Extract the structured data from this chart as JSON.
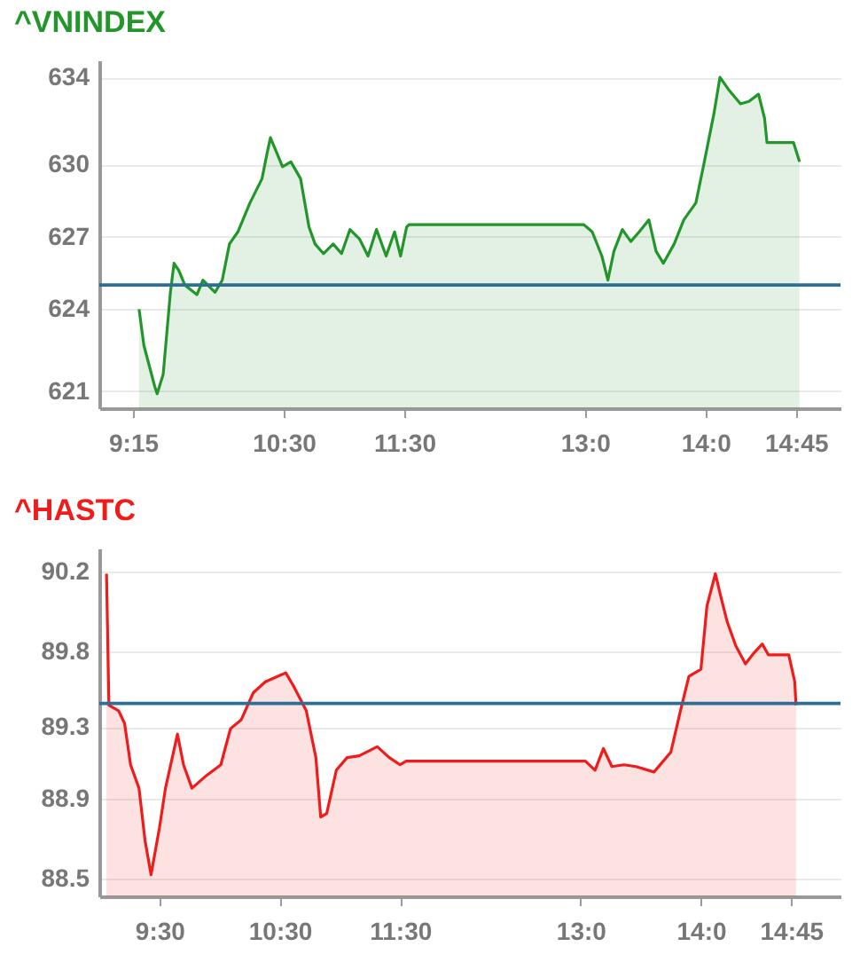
{
  "chart_data": [
    {
      "type": "area",
      "title": "^VNINDEX",
      "xlim": [
        8.97,
        15.12
      ],
      "ylim": [
        620.3,
        634.7
      ],
      "xticks": [
        {
          "value": 9.25,
          "label": "9:15"
        },
        {
          "value": 10.5,
          "label": "10:30"
        },
        {
          "value": 11.5,
          "label": "11:30"
        },
        {
          "value": 13,
          "label": "13:0"
        },
        {
          "value": 14,
          "label": "14:0"
        },
        {
          "value": 14.75,
          "label": "14:45"
        }
      ],
      "yticks": [
        621,
        {
          "value": 624.4,
          "label": "624"
        },
        {
          "value": 627.4,
          "label": "627"
        },
        {
          "value": 630.4,
          "label": "630"
        },
        634
      ],
      "grid": "y",
      "x": [
        9.3,
        9.34,
        9.43,
        9.45,
        9.5,
        9.56,
        9.59,
        9.63,
        9.68,
        9.78,
        9.83,
        9.93,
        9.99,
        10.05,
        10.12,
        10.22,
        10.32,
        10.36,
        10.39,
        10.44,
        10.49,
        10.56,
        10.64,
        10.71,
        10.76,
        10.83,
        10.91,
        10.98,
        11.05,
        11.13,
        11.2,
        11.27,
        11.35,
        11.42,
        11.47,
        11.52,
        11.54,
        12.99,
        13.06,
        13.14,
        13.19,
        13.24,
        13.31,
        13.38,
        13.45,
        13.53,
        13.59,
        13.65,
        13.74,
        13.82,
        13.92,
        13.99,
        14.07,
        14.12,
        14.19,
        14.29,
        14.36,
        14.44,
        14.49,
        14.51,
        14.73,
        14.78
      ],
      "series": [
        {
          "color": "#23962b",
          "values": [
            624.4,
            622.9,
            621.2,
            620.9,
            621.7,
            625.1,
            626.3,
            626.0,
            625.4,
            625.0,
            625.6,
            625.1,
            625.6,
            627.1,
            627.6,
            628.8,
            629.8,
            630.8,
            631.5,
            630.9,
            630.3,
            630.5,
            629.8,
            627.8,
            627.1,
            626.7,
            627.1,
            626.7,
            627.7,
            627.3,
            626.6,
            627.7,
            626.6,
            627.6,
            626.6,
            627.8,
            627.9,
            627.9,
            627.6,
            626.6,
            625.6,
            626.8,
            627.7,
            627.2,
            627.6,
            628.1,
            626.8,
            626.3,
            627.1,
            628.1,
            628.8,
            630.5,
            632.5,
            634.0,
            633.5,
            632.9,
            633.0,
            633.3,
            632.3,
            631.3,
            631.3,
            630.5
          ]
        }
      ],
      "ref_lines": [
        {
          "axis": "y",
          "value": 625.4,
          "color": "#2c6e94"
        }
      ]
    },
    {
      "type": "area",
      "title": "^HASTC",
      "xlim": [
        9.0,
        15.16
      ],
      "ylim": [
        88.4,
        90.33
      ],
      "xticks": [
        {
          "value": 9.5,
          "label": "9:30"
        },
        {
          "value": 10.5,
          "label": "10:30"
        },
        {
          "value": 11.5,
          "label": "11:30"
        },
        {
          "value": 13,
          "label": "13:0"
        },
        {
          "value": 14,
          "label": "14:0"
        },
        {
          "value": 14.75,
          "label": "14:45"
        }
      ],
      "yticks": [
        88.5,
        {
          "value": 88.94,
          "label": "88.9"
        },
        {
          "value": 89.34,
          "label": "89.3"
        },
        {
          "value": 89.76,
          "label": "89.8"
        },
        90.2
      ],
      "grid": "y",
      "x": [
        9.06,
        9.08,
        9.16,
        9.21,
        9.26,
        9.33,
        9.38,
        9.43,
        9.5,
        9.55,
        9.65,
        9.7,
        9.77,
        9.89,
        10.01,
        10.09,
        10.18,
        10.28,
        10.38,
        10.48,
        10.55,
        10.62,
        10.72,
        10.8,
        10.84,
        10.89,
        10.97,
        11.06,
        11.16,
        11.31,
        11.41,
        11.5,
        11.55,
        13.04,
        13.12,
        13.19,
        13.26,
        13.36,
        13.46,
        13.61,
        13.75,
        13.83,
        13.9,
        14.0,
        14.05,
        14.12,
        14.17,
        14.22,
        14.29,
        14.37,
        14.44,
        14.51,
        14.56,
        14.73,
        14.78,
        14.79
      ],
      "series": [
        {
          "color": "#f01c1c",
          "values": [
            90.19,
            89.46,
            89.43,
            89.36,
            89.13,
            89.0,
            88.71,
            88.52,
            88.78,
            89.0,
            89.3,
            89.13,
            89.0,
            89.07,
            89.13,
            89.33,
            89.38,
            89.53,
            89.59,
            89.62,
            89.64,
            89.56,
            89.43,
            89.17,
            88.84,
            88.86,
            89.1,
            89.17,
            89.18,
            89.23,
            89.17,
            89.13,
            89.15,
            89.15,
            89.1,
            89.22,
            89.12,
            89.13,
            89.12,
            89.09,
            89.2,
            89.43,
            89.62,
            89.66,
            90.01,
            90.19,
            90.05,
            89.92,
            89.79,
            89.69,
            89.75,
            89.8,
            89.74,
            89.74,
            89.59,
            89.46
          ]
        }
      ],
      "ref_lines": [
        {
          "axis": "y",
          "value": 89.47,
          "color": "#2c6e94"
        }
      ]
    }
  ]
}
